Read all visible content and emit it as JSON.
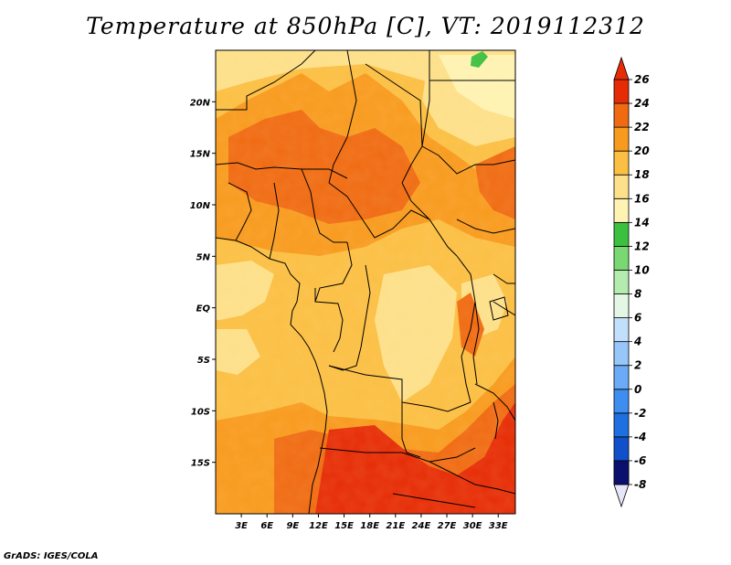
{
  "title": "Temperature at 850hPa [C], VT: 2019112312",
  "credit": "GrADS: IGES/COLA",
  "map": {
    "lon_range": [
      0,
      35
    ],
    "lat_range": [
      -20,
      25
    ],
    "lon_ticks": [
      {
        "value": 3,
        "label": "3E"
      },
      {
        "value": 6,
        "label": "6E"
      },
      {
        "value": 9,
        "label": "9E"
      },
      {
        "value": 12,
        "label": "12E"
      },
      {
        "value": 15,
        "label": "15E"
      },
      {
        "value": 18,
        "label": "18E"
      },
      {
        "value": 21,
        "label": "21E"
      },
      {
        "value": 24,
        "label": "24E"
      },
      {
        "value": 27,
        "label": "27E"
      },
      {
        "value": 30,
        "label": "30E"
      },
      {
        "value": 33,
        "label": "33E"
      }
    ],
    "lat_ticks": [
      {
        "value": 20,
        "label": "20N"
      },
      {
        "value": 15,
        "label": "15N"
      },
      {
        "value": 10,
        "label": "10N"
      },
      {
        "value": 5,
        "label": "5N"
      },
      {
        "value": 0,
        "label": "EQ"
      },
      {
        "value": -5,
        "label": "5S"
      },
      {
        "value": -10,
        "label": "10S"
      },
      {
        "value": -15,
        "label": "15S"
      }
    ]
  },
  "colorbar": {
    "levels": [
      -8,
      -6,
      -4,
      -2,
      0,
      2,
      4,
      6,
      8,
      10,
      12,
      14,
      16,
      18,
      20,
      22,
      24,
      26
    ],
    "labels": [
      "-8",
      "-6",
      "-4",
      "-2",
      "0",
      "2",
      "4",
      "6",
      "8",
      "10",
      "12",
      "14",
      "16",
      "18",
      "20",
      "22",
      "24",
      "26"
    ],
    "colors": [
      "#0b0f6e",
      "#0c2fa8",
      "#1150c9",
      "#1e6fe0",
      "#3d8ef0",
      "#6aaaf6",
      "#96c6fa",
      "#c2e0fc",
      "#e4f6e4",
      "#b4ecb0",
      "#7ad872",
      "#3cc040",
      "#fff3b4",
      "#fde08a",
      "#fbbf44",
      "#f89a1e",
      "#f06a12",
      "#e62c06",
      "#c80000"
    ],
    "under_color": "#e6e6f8",
    "over_color": "#e62c06"
  }
}
